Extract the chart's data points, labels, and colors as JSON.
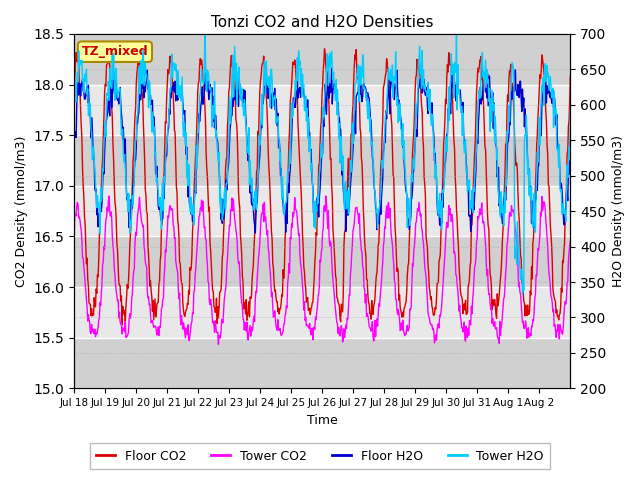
{
  "title": "Tonzi CO2 and H2O Densities",
  "xlabel": "Time",
  "ylabel_left": "CO2 Density (mmol/m3)",
  "ylabel_right": "H2O Density (mmol/m3)",
  "annotation": "TZ_mixed",
  "annotation_color": "#cc0000",
  "annotation_bg": "#ffff99",
  "annotation_border": "#aa8800",
  "ylim_left": [
    15.0,
    18.5
  ],
  "ylim_right": [
    200,
    700
  ],
  "yticks_left": [
    15.0,
    15.5,
    16.0,
    16.5,
    17.0,
    17.5,
    18.0,
    18.5
  ],
  "yticks_right": [
    200,
    250,
    300,
    350,
    400,
    450,
    500,
    550,
    600,
    650,
    700
  ],
  "xtick_labels": [
    "Jul 18",
    "Jul 19",
    "Jul 20",
    "Jul 21",
    "Jul 22",
    "Jul 23",
    "Jul 24",
    "Jul 25",
    "Jul 26",
    "Jul 27",
    "Jul 28",
    "Jul 29",
    "Jul 30",
    "Jul 31",
    "Aug 1",
    "Aug 2"
  ],
  "legend_labels": [
    "Floor CO2",
    "Tower CO2",
    "Floor H2O",
    "Tower H2O"
  ],
  "legend_colors": [
    "#dd0000",
    "#ff00ff",
    "#0000cc",
    "#00ccff"
  ],
  "line_width": 1.0,
  "background_color": "#ffffff",
  "plot_bg_light": "#e8e8e8",
  "plot_bg_dark": "#d0d0d0",
  "grid_color": "#ffffff",
  "n_points": 768,
  "seed": 42
}
